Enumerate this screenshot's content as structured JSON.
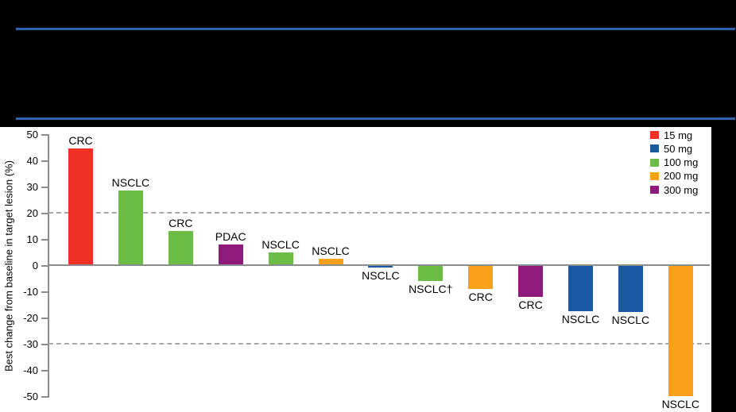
{
  "header": {
    "background": "#000000",
    "rule_color": "#2E64AE"
  },
  "panel_background": "#FFFFFF",
  "chart_data": {
    "type": "bar",
    "subtype": "waterfall",
    "title": "",
    "xlabel": "",
    "ylabel": "Best change from baseline in target lesion (%)",
    "ylim": [
      -50,
      50
    ],
    "yticks": [
      50,
      40,
      30,
      20,
      10,
      0,
      -10,
      -20,
      -30,
      -40,
      -50
    ],
    "reference_lines": [
      20,
      -30
    ],
    "grid": "dashed horizontal reference lines at +20 and -30 only",
    "axis_color": "#8C8C8C",
    "legend": {
      "position": "top-right",
      "entries": [
        {
          "label": "15 mg",
          "color": "#EE3124"
        },
        {
          "label": "50 mg",
          "color": "#1959A3"
        },
        {
          "label": "100 mg",
          "color": "#6BBE45"
        },
        {
          "label": "200 mg",
          "color": "#F9A11B"
        },
        {
          "label": "300 mg",
          "color": "#8E1A7B"
        }
      ]
    },
    "bars": [
      {
        "label": "CRC",
        "dose": "15 mg",
        "value": 44.5
      },
      {
        "label": "NSCLC",
        "dose": "100 mg",
        "value": 28.5
      },
      {
        "label": "CRC",
        "dose": "100 mg",
        "value": 13
      },
      {
        "label": "PDAC",
        "dose": "300 mg",
        "value": 8
      },
      {
        "label": "NSCLC",
        "dose": "100 mg",
        "value": 5
      },
      {
        "label": "NSCLC",
        "dose": "200 mg",
        "value": 2.5
      },
      {
        "label": "NSCLC",
        "dose": "50 mg",
        "value": -1
      },
      {
        "label": "NSCLC†",
        "dose": "100 mg",
        "value": -6
      },
      {
        "label": "CRC",
        "dose": "200 mg",
        "value": -9
      },
      {
        "label": "CRC",
        "dose": "300 mg",
        "value": -12
      },
      {
        "label": "NSCLC",
        "dose": "50 mg",
        "value": -17.5
      },
      {
        "label": "NSCLC",
        "dose": "50 mg",
        "value": -18
      },
      {
        "label": "NSCLC",
        "dose": "200 mg",
        "value": -50
      }
    ]
  }
}
